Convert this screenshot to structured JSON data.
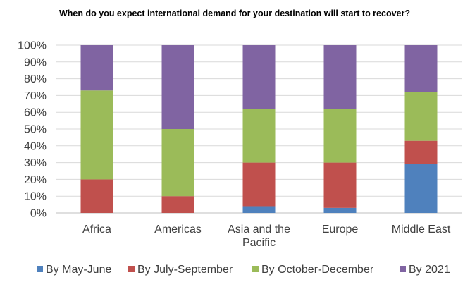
{
  "chart_data": {
    "type": "bar",
    "stacked": true,
    "title": "When do you expect international demand for your destination will start to recover?",
    "categories": [
      "Africa",
      "Americas",
      "Asia and the Pacific",
      "Europe",
      "Middle East"
    ],
    "category_lines": [
      [
        "Africa"
      ],
      [
        "Americas"
      ],
      [
        "Asia and the",
        "Pacific"
      ],
      [
        "Europe"
      ],
      [
        "Middle East"
      ]
    ],
    "series": [
      {
        "name": "By May-June",
        "color": "#4f81bd",
        "values": [
          0,
          0,
          4,
          3,
          29
        ]
      },
      {
        "name": "By July-September",
        "color": "#c0504d",
        "values": [
          20,
          10,
          26,
          27,
          14
        ]
      },
      {
        "name": "By October-December",
        "color": "#9bbb59",
        "values": [
          53,
          40,
          32,
          32,
          29
        ]
      },
      {
        "name": "By 2021",
        "color": "#8064a2",
        "values": [
          27,
          50,
          38,
          38,
          28
        ]
      }
    ],
    "ylim": [
      0,
      100
    ],
    "yticks": [
      "0%",
      "10%",
      "20%",
      "30%",
      "40%",
      "50%",
      "60%",
      "70%",
      "80%",
      "90%",
      "100%"
    ],
    "grid": true,
    "legend_position": "bottom"
  }
}
